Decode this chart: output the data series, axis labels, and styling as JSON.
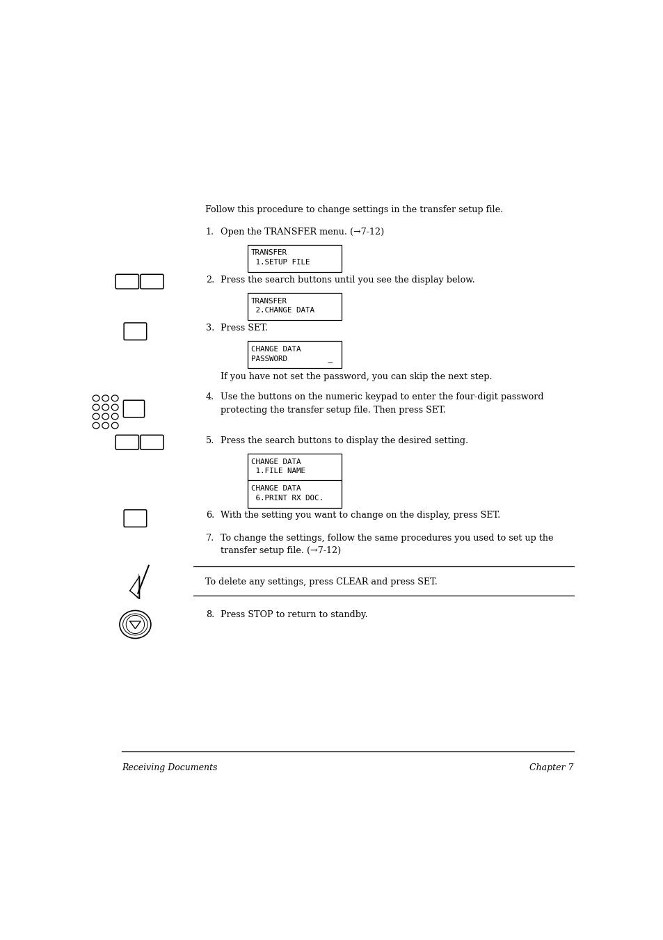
{
  "bg_color": "#ffffff",
  "text_color": "#000000",
  "page_width": 9.54,
  "page_height": 13.51,
  "intro_text": "Follow this procedure to change settings in the transfer setup file.",
  "footer_left": "Receiving Documents",
  "footer_right": "Chapter 7",
  "note_text": "To delete any settings, press CLEAR and press SET."
}
